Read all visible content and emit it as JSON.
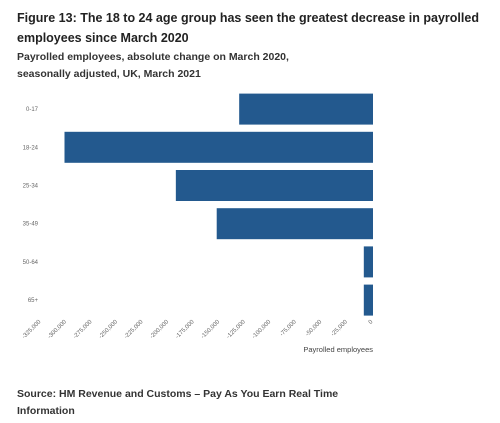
{
  "figure": {
    "title": "Figure 13: The 18 to 24 age group has seen the greatest decrease in payrolled employees since March 2020",
    "subtitle": "Payrolled employees, absolute change on March 2020, seasonally adjusted, UK, March 2021",
    "source": "Source: HM Revenue and Customs – Pay As You Earn Real Time Information"
  },
  "chart_data": {
    "type": "bar",
    "orientation": "horizontal",
    "title": "Figure 13: The 18 to 24 age group has seen the greatest decrease in payrolled employees since March 2020",
    "subtitle": "Payrolled employees, absolute change on March 2020, seasonally adjusted, UK, March 2021",
    "categories": [
      "0-17",
      "18-24",
      "25-34",
      "35-49",
      "50-64",
      "65+"
    ],
    "values": [
      -131000,
      -302000,
      -193000,
      -153000,
      -9000,
      -9000
    ],
    "xlabel": "Payrolled employees",
    "ylabel": "",
    "xlim": [
      -325000,
      0
    ],
    "xticks": [
      -325000,
      -300000,
      -275000,
      -250000,
      -225000,
      -200000,
      -175000,
      -150000,
      -125000,
      -100000,
      -75000,
      -50000,
      -25000,
      0
    ],
    "xtick_labels": [
      "-325,000",
      "-300,000",
      "-275,000",
      "-250,000",
      "-225,000",
      "-200,000",
      "-175,000",
      "-150,000",
      "-125,000",
      "-100,000",
      "-75,000",
      "-50,000",
      "-25,000",
      "0"
    ],
    "bar_color": "#23598e",
    "grid": false,
    "legend": "none"
  }
}
